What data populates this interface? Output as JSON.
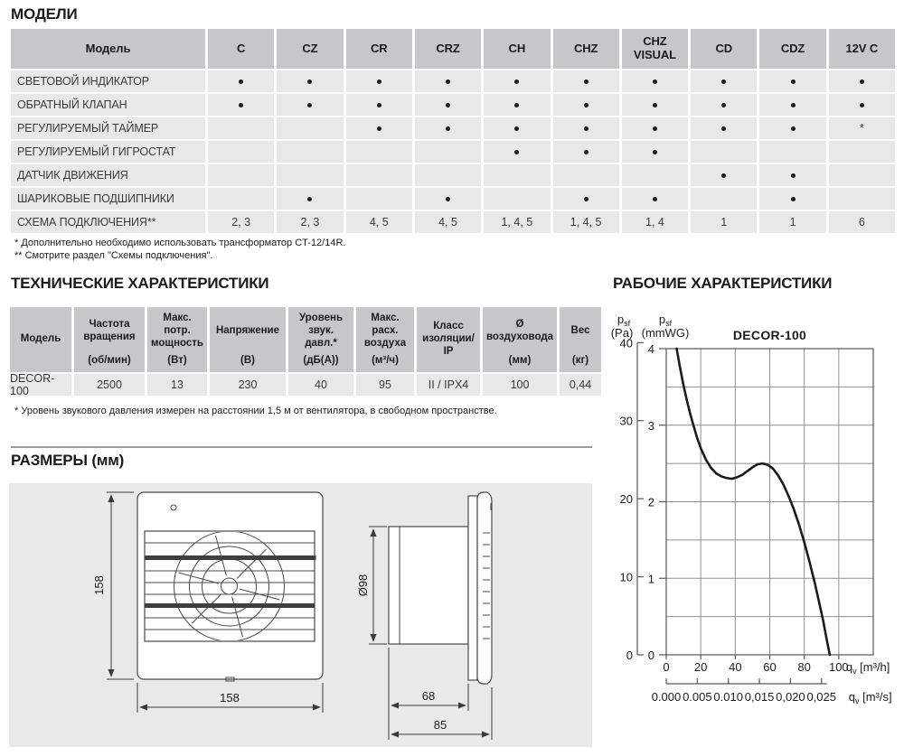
{
  "page": {
    "models_heading": "МОДЕЛИ",
    "tech_heading": "ТЕХНИЧЕСКИЕ ХАРАКТЕРИСТИКИ",
    "performance_heading": "РАБОЧИЕ ХАРАКТЕРИСТИКИ",
    "dimensions_heading": "РАЗМЕРЫ (мм)"
  },
  "models_table": {
    "header": [
      "Модель",
      "C",
      "CZ",
      "CR",
      "CRZ",
      "CH",
      "CHZ",
      "CHZ VISUAL",
      "CD",
      "CDZ",
      "12V C"
    ],
    "rows": [
      {
        "label": "СВЕТОВОЙ ИНДИКАТОР",
        "cells": [
          "•",
          "•",
          "•",
          "•",
          "•",
          "•",
          "•",
          "•",
          "•",
          "•"
        ]
      },
      {
        "label": "ОБРАТНЫЙ КЛАПАН",
        "cells": [
          "•",
          "•",
          "•",
          "•",
          "•",
          "•",
          "•",
          "•",
          "•",
          "•"
        ]
      },
      {
        "label": "РЕГУЛИРУЕМЫЙ ТАЙМЕР",
        "cells": [
          "",
          "",
          "•",
          "•",
          "•",
          "•",
          "•",
          "•",
          "•",
          "*"
        ]
      },
      {
        "label": "РЕГУЛИРУЕМЫЙ ГИГРОСТАТ",
        "cells": [
          "",
          "",
          "",
          "",
          "•",
          "•",
          "•",
          "",
          "",
          ""
        ]
      },
      {
        "label": "ДАТЧИК ДВИЖЕНИЯ",
        "cells": [
          "",
          "",
          "",
          "",
          "",
          "",
          "",
          "•",
          "•",
          ""
        ]
      },
      {
        "label": "ШАРИКОВЫЕ ПОДШИПНИКИ",
        "cells": [
          "",
          "•",
          "",
          "•",
          "",
          "•",
          "•",
          "",
          "•",
          ""
        ]
      },
      {
        "label": "СХЕМА ПОДКЛЮЧЕНИЯ**",
        "cells": [
          "2, 3",
          "2, 3",
          "4, 5",
          "4, 5",
          "1, 4, 5",
          "1, 4, 5",
          "1, 4",
          "1",
          "1",
          "6"
        ]
      }
    ]
  },
  "models_footnotes": [
    "* Дополнительно необходимо использовать трансформатор CT-12/14R.",
    "** Смотрите раздел \"Схемы подключения\"."
  ],
  "tech_table": {
    "headers": [
      {
        "title": "Модель",
        "unit": ""
      },
      {
        "title": "Частота вращения",
        "unit": "(об/мин)"
      },
      {
        "title": "Макс. потр. мощность",
        "unit": "(Вт)"
      },
      {
        "title": "Напряжение",
        "unit": "(В)"
      },
      {
        "title": "Уровень звук. давл.*",
        "unit": "(дБ(А))"
      },
      {
        "title": "Макс. расх. воздуха",
        "unit": "(м³/ч)"
      },
      {
        "title": "Класс изоляции/ IP",
        "unit": ""
      },
      {
        "title": "Ø воздуховода",
        "unit": "(мм)"
      },
      {
        "title": "Вес",
        "unit": "(кг)"
      }
    ],
    "row": [
      "DECOR-100",
      "2500",
      "13",
      "230",
      "40",
      "95",
      "II / IPX4",
      "100",
      "0,44"
    ]
  },
  "tech_footnote": "* Уровень звукового давления измерен на расстоянии 1,5 м от вентилятора, в свободном пространстве.",
  "dimensions": {
    "front_height": "158",
    "front_width": "158",
    "duct_diameter": "Ø98",
    "duct_depth": "68",
    "total_depth": "85"
  },
  "chart_data": {
    "type": "line",
    "title": "DECOR-100",
    "grid": true,
    "legend_position": "none",
    "y_axis_pa": {
      "sym": "p",
      "sub": "sf",
      "unit": "(Pa)",
      "ticks": [
        40,
        30,
        20,
        10,
        0
      ],
      "pa_per_mmwg": 9.80665
    },
    "y_axis_mmwg": {
      "sym": "p",
      "sub": "sf",
      "unit": "(mmWG)",
      "ticks": [
        4,
        3,
        2,
        1,
        0
      ],
      "max": 4,
      "grid_step": 0.5
    },
    "x_axis_m3h": {
      "sym": "q",
      "sub": "v",
      "unit": "[m³/h]",
      "ticks": [
        0,
        20,
        40,
        60,
        80,
        100
      ],
      "max": 120,
      "grid_step": 20
    },
    "x_axis_m3s": {
      "sym": "q",
      "sub": "v",
      "unit": "[m³/s]",
      "tick_labels": [
        "0.000",
        "0.005",
        "0.010",
        "0,015",
        "0,020",
        "0,025"
      ],
      "step_m3h": 18,
      "end_m3h": 90
    },
    "series": [
      {
        "name": "DECOR-100",
        "x_unit": "m³/h",
        "y_unit": "mmWG",
        "points": [
          [
            6,
            4.0
          ],
          [
            8,
            3.75
          ],
          [
            10,
            3.52
          ],
          [
            12,
            3.32
          ],
          [
            14,
            3.14
          ],
          [
            16,
            2.98
          ],
          [
            18,
            2.83
          ],
          [
            20,
            2.7
          ],
          [
            23,
            2.55
          ],
          [
            26,
            2.44
          ],
          [
            29,
            2.37
          ],
          [
            32,
            2.33
          ],
          [
            35,
            2.31
          ],
          [
            38,
            2.3
          ],
          [
            41,
            2.32
          ],
          [
            44,
            2.35
          ],
          [
            47,
            2.4
          ],
          [
            50,
            2.45
          ],
          [
            53,
            2.49
          ],
          [
            56,
            2.5
          ],
          [
            59,
            2.48
          ],
          [
            62,
            2.43
          ],
          [
            65,
            2.34
          ],
          [
            68,
            2.22
          ],
          [
            71,
            2.07
          ],
          [
            74,
            1.9
          ],
          [
            77,
            1.7
          ],
          [
            80,
            1.47
          ],
          [
            83,
            1.22
          ],
          [
            86,
            0.95
          ],
          [
            89,
            0.65
          ],
          [
            91,
            0.44
          ],
          [
            93,
            0.2
          ],
          [
            94.8,
            0
          ]
        ]
      }
    ]
  }
}
